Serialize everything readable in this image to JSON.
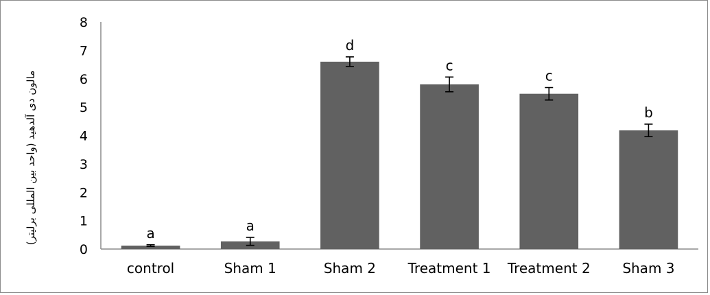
{
  "chart_data": {
    "type": "bar",
    "title": "",
    "xlabel": "",
    "ylabel": "مالون دی آلدهید (واحد بین المللی برلیتر)",
    "ylim": [
      0,
      8
    ],
    "yticks": [
      0,
      1,
      2,
      3,
      4,
      5,
      6,
      7,
      8
    ],
    "grid": false,
    "legend": "none",
    "bar_color": "#616161",
    "categories": [
      "control",
      "Sham 1",
      "Sham 2",
      "Treatment 1",
      "Treatment 2",
      "Sham 3"
    ],
    "values": [
      0.12,
      0.27,
      6.6,
      5.8,
      5.47,
      4.18
    ],
    "errors": [
      0.03,
      0.14,
      0.17,
      0.26,
      0.22,
      0.22
    ],
    "significance_labels": [
      "a",
      "a",
      "d",
      "c",
      "c",
      "b"
    ]
  }
}
